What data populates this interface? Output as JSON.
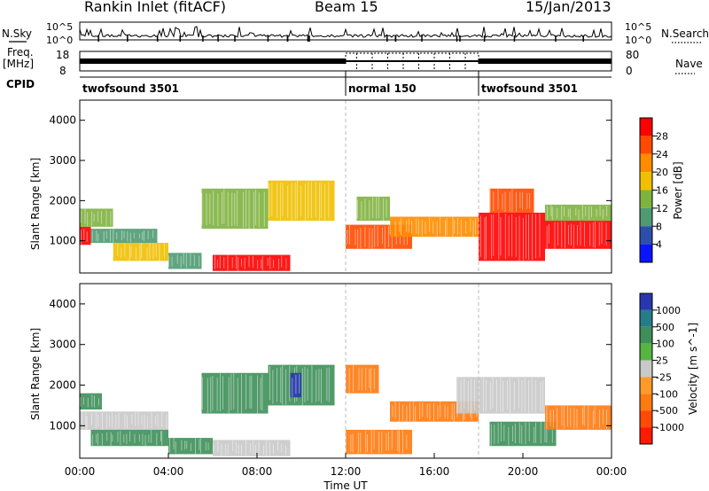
{
  "header": {
    "station": "Rankin Inlet (fitACF)",
    "beam": "Beam 15",
    "date": "15/Jan/2013"
  },
  "aux_panels": {
    "nsky_label": "N.Sky",
    "nsearch_label": "N.Search",
    "nsky_ticks": [
      "10^5",
      "10^0"
    ],
    "nsearch_ticks": [
      "10^5",
      "10^0"
    ],
    "freq_label": "Freq.",
    "freq_unit": "[MHz]",
    "freq_ticks": [
      "18",
      "8"
    ],
    "nave_label": "Nave",
    "nave_ticks": [
      "80",
      "0"
    ],
    "cpid_label": "CPID",
    "cpid_segments": [
      {
        "label": "twofsound 3501",
        "start_hour": 0,
        "end_hour": 12
      },
      {
        "label": "normal 150",
        "start_hour": 12,
        "end_hour": 18
      },
      {
        "label": "twofsound 3501",
        "start_hour": 18,
        "end_hour": 24
      }
    ]
  },
  "colorbars": {
    "power": {
      "title": "Power [dB]",
      "ticks": [
        "28",
        "24",
        "20",
        "16",
        "12",
        "8",
        "4"
      ],
      "colors": [
        "#ff0000",
        "#ff4a00",
        "#ff8c00",
        "#f0c000",
        "#7fb33f",
        "#4f9a72",
        "#2c4fae",
        "#0a14ff"
      ]
    },
    "velocity": {
      "title": "Velocity [m s^-1]",
      "ticks": [
        "1000",
        "500",
        "100",
        "25",
        "-25",
        "-100",
        "-500",
        "-1000"
      ],
      "colors": [
        "#2837b0",
        "#277c8a",
        "#3e8f59",
        "#55b540",
        "#c9c9c9",
        "#ff9a2a",
        "#ff7a10",
        "#ff4a05",
        "#ff1a00"
      ]
    }
  },
  "chart_data": [
    {
      "type": "heatmap",
      "name": "Power",
      "ylabel": "Slant Range [km]",
      "xlabel": "",
      "ylim": [
        200,
        4500
      ],
      "xlim_hours": [
        0,
        24
      ],
      "yticks": [
        "1000",
        "2000",
        "3000",
        "4000"
      ],
      "cells": [
        {
          "t0": 0.0,
          "t1": 0.5,
          "r0": 900,
          "r1": 1350,
          "v": 28
        },
        {
          "t0": 0.0,
          "t1": 1.5,
          "r0": 1350,
          "r1": 1800,
          "v": 12
        },
        {
          "t0": 0.5,
          "t1": 3.5,
          "r0": 950,
          "r1": 1300,
          "v": 8
        },
        {
          "t0": 1.5,
          "t1": 4.0,
          "r0": 500,
          "r1": 950,
          "v": 16
        },
        {
          "t0": 4.0,
          "t1": 5.5,
          "r0": 300,
          "r1": 700,
          "v": 8
        },
        {
          "t0": 5.5,
          "t1": 8.5,
          "r0": 1300,
          "r1": 2300,
          "v": 12
        },
        {
          "t0": 6.0,
          "t1": 9.5,
          "r0": 250,
          "r1": 650,
          "v": 28
        },
        {
          "t0": 8.5,
          "t1": 11.5,
          "r0": 1500,
          "r1": 2500,
          "v": 16
        },
        {
          "t0": 12.0,
          "t1": 15.0,
          "r0": 800,
          "r1": 1400,
          "v": 24
        },
        {
          "t0": 12.5,
          "t1": 14.0,
          "r0": 1500,
          "r1": 2100,
          "v": 12
        },
        {
          "t0": 14.0,
          "t1": 18.0,
          "r0": 1100,
          "r1": 1600,
          "v": 20
        },
        {
          "t0": 18.0,
          "t1": 21.0,
          "r0": 500,
          "r1": 1700,
          "v": 28
        },
        {
          "t0": 18.5,
          "t1": 20.5,
          "r0": 1700,
          "r1": 2300,
          "v": 24
        },
        {
          "t0": 21.0,
          "t1": 24.0,
          "r0": 800,
          "r1": 1500,
          "v": 28
        },
        {
          "t0": 21.0,
          "t1": 24.0,
          "r0": 1500,
          "r1": 1900,
          "v": 12
        }
      ]
    },
    {
      "type": "heatmap",
      "name": "Velocity",
      "ylabel": "Slant Range [km]",
      "xlabel": "Time UT",
      "ylim": [
        200,
        4500
      ],
      "xlim_hours": [
        0,
        24
      ],
      "yticks": [
        "1000",
        "2000",
        "3000",
        "4000"
      ],
      "xticks": [
        "00:00",
        "04:00",
        "08:00",
        "12:00",
        "16:00",
        "20:00",
        "00:00"
      ],
      "cells": [
        {
          "t0": 0.0,
          "t1": 1.0,
          "r0": 1400,
          "r1": 1800,
          "v": 100
        },
        {
          "t0": 0.0,
          "t1": 4.0,
          "r0": 900,
          "r1": 1350,
          "v": 0
        },
        {
          "t0": 0.5,
          "t1": 4.0,
          "r0": 500,
          "r1": 900,
          "v": 100
        },
        {
          "t0": 4.0,
          "t1": 6.0,
          "r0": 300,
          "r1": 700,
          "v": 300
        },
        {
          "t0": 5.5,
          "t1": 8.5,
          "r0": 1300,
          "r1": 2300,
          "v": 300
        },
        {
          "t0": 6.0,
          "t1": 9.5,
          "r0": 250,
          "r1": 650,
          "v": 0
        },
        {
          "t0": 8.5,
          "t1": 11.5,
          "r0": 1500,
          "r1": 2500,
          "v": 100
        },
        {
          "t0": 9.5,
          "t1": 10.0,
          "r0": 1700,
          "r1": 2300,
          "v": 800
        },
        {
          "t0": 12.0,
          "t1": 13.5,
          "r0": 1800,
          "r1": 2500,
          "v": -300
        },
        {
          "t0": 12.0,
          "t1": 15.0,
          "r0": 300,
          "r1": 900,
          "v": -300
        },
        {
          "t0": 14.0,
          "t1": 18.0,
          "r0": 1100,
          "r1": 1600,
          "v": -300
        },
        {
          "t0": 17.0,
          "t1": 21.0,
          "r0": 1300,
          "r1": 2200,
          "v": 0
        },
        {
          "t0": 18.5,
          "t1": 21.5,
          "r0": 500,
          "r1": 1100,
          "v": 100
        },
        {
          "t0": 21.0,
          "t1": 24.0,
          "r0": 900,
          "r1": 1500,
          "v": -300
        }
      ]
    }
  ]
}
